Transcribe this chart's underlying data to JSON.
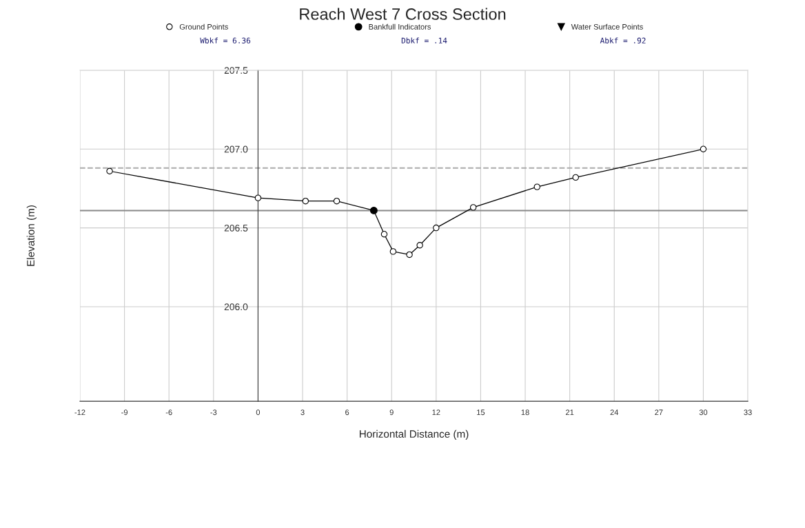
{
  "chart_data": {
    "type": "line",
    "title": "Reach West 7 Cross Section",
    "xlabel": "Horizontal Distance (m)",
    "ylabel": "Elevation (m)",
    "x": [
      -10,
      0,
      3.2,
      5.3,
      7.8,
      8.5,
      9.1,
      10.2,
      10.9,
      12.0,
      14.5,
      18.8,
      21.4,
      30
    ],
    "series": [
      {
        "name": "Ground Points",
        "color": "#000000",
        "marker": "circle",
        "values": [
          206.86,
          206.69,
          206.67,
          206.67,
          206.61,
          206.46,
          206.35,
          206.33,
          206.39,
          206.5,
          206.63,
          206.76,
          206.82,
          207.0
        ]
      },
      {
        "name": "Bankfull Indicators",
        "type": "scatter",
        "color": "#000000",
        "marker": "circle",
        "values": [
          null,
          null,
          null,
          null,
          206.61,
          null,
          null,
          null,
          null,
          null,
          null,
          null,
          null,
          null
        ]
      },
      {
        "name": "Water Surface Points",
        "type": "scatter",
        "color": "#000000",
        "marker": "triangle",
        "values": [
          null,
          null,
          null,
          null,
          null,
          null,
          null,
          null,
          null,
          null,
          null,
          null,
          null,
          null
        ]
      }
    ],
    "xlim": [
      -12,
      33
    ],
    "xticks": [
      -12,
      -9,
      -6,
      -3,
      0,
      3,
      6,
      9,
      12,
      15,
      18,
      21,
      24,
      27,
      30,
      33
    ],
    "ylim": [
      205.4,
      207.5
    ],
    "yticks": [
      {
        "value": 206.0,
        "label": "206.0"
      },
      206.5,
      {
        "value": 207.0,
        "label": "207.0"
      },
      207.5
    ],
    "ref_lines": [
      {
        "axis": "y",
        "value": 206.88,
        "color": "#aaaaaa",
        "line_style": "dashed"
      },
      {
        "axis": "y",
        "value": 206.61,
        "color": "#888888",
        "line_style": "solid"
      }
    ],
    "annotations": [
      "Wbkf = 6.36",
      "Dbkf = .14",
      "Abkf = .92"
    ],
    "grid": true,
    "legend": "top"
  }
}
